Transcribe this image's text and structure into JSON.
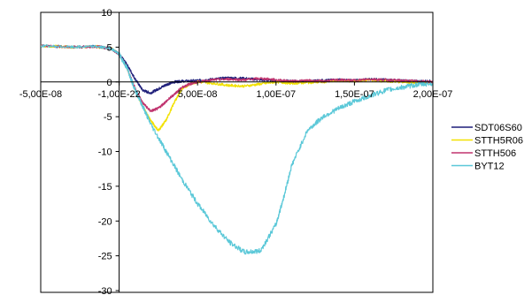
{
  "chart_data": {
    "type": "line",
    "title": "",
    "xlabel": "",
    "ylabel": "",
    "xlim": [
      -5e-08,
      2e-07
    ],
    "ylim": [
      -30,
      10
    ],
    "grid": false,
    "legend_position": "right",
    "x_tick_labels": [
      "-5,00E-08",
      "-1,00E-22",
      "5,00E-08",
      "1,00E-07",
      "1,50E-07",
      "2,00E-07"
    ],
    "y_tick_labels": [
      "10",
      "5",
      "0",
      "-5",
      "-10",
      "-15",
      "-20",
      "-25",
      "-30"
    ],
    "series": [
      {
        "name": "SDT06S60",
        "color": "#1f1f7a",
        "x": [
          -5e-08,
          -3e-08,
          -1.5e-08,
          -5e-09,
          0,
          5e-09,
          1e-08,
          1.5e-08,
          2e-08,
          2.5e-08,
          3e-08,
          3.5e-08,
          4e-08,
          5e-08,
          6e-08,
          7e-08,
          8e-08,
          9e-08,
          1e-07,
          1.1e-07,
          1.2e-07,
          1.3e-07,
          1.4e-07,
          1.5e-07,
          1.6e-07,
          1.7e-07,
          1.8e-07,
          1.9e-07,
          2e-07
        ],
        "y": [
          5.2,
          5.0,
          5.1,
          4.8,
          4.0,
          2.5,
          0.5,
          -1.2,
          -1.6,
          -1.0,
          -0.4,
          0.0,
          0.1,
          0.2,
          0.4,
          0.6,
          0.5,
          0.3,
          0.2,
          0.1,
          0.1,
          0.2,
          0.3,
          0.2,
          0.4,
          0.3,
          0.2,
          0.1,
          0.1
        ]
      },
      {
        "name": "STTH5R06",
        "color": "#f2e100",
        "x": [
          -5e-08,
          -3e-08,
          -1.5e-08,
          -5e-09,
          0,
          5e-09,
          1e-08,
          1.5e-08,
          2e-08,
          2.5e-08,
          3e-08,
          3.5e-08,
          4e-08,
          4.5e-08,
          5e-08,
          6e-08,
          7e-08,
          8e-08,
          9e-08,
          1e-07,
          1.1e-07,
          1.2e-07,
          1.3e-07,
          1.4e-07,
          1.5e-07,
          1.6e-07,
          1.7e-07,
          1.8e-07,
          1.9e-07,
          2e-07
        ],
        "y": [
          5.2,
          5.0,
          5.1,
          4.8,
          4.0,
          2.0,
          -1.0,
          -3.5,
          -5.5,
          -7.0,
          -5.5,
          -3.0,
          -1.0,
          -0.3,
          0.0,
          -0.2,
          -0.5,
          -0.6,
          -0.3,
          0.0,
          -0.2,
          -0.1,
          0.0,
          0.2,
          0.1,
          0.3,
          0.1,
          0.0,
          -0.1,
          0.0
        ]
      },
      {
        "name": "STTH506",
        "color": "#c0336e",
        "x": [
          -5e-08,
          -3e-08,
          -1.5e-08,
          -5e-09,
          0,
          5e-09,
          1e-08,
          1.5e-08,
          2e-08,
          2.5e-08,
          3e-08,
          3.5e-08,
          4e-08,
          4.5e-08,
          5e-08,
          6e-08,
          7e-08,
          8e-08,
          9e-08,
          1e-07,
          1.1e-07,
          1.2e-07,
          1.3e-07,
          1.4e-07,
          1.5e-07,
          1.6e-07,
          1.7e-07,
          1.8e-07,
          1.9e-07,
          2e-07
        ],
        "y": [
          5.2,
          5.0,
          5.1,
          4.8,
          4.0,
          2.0,
          -0.8,
          -3.0,
          -4.2,
          -3.8,
          -2.8,
          -1.8,
          -0.8,
          -0.3,
          0.0,
          0.3,
          0.4,
          0.3,
          0.5,
          0.3,
          0.1,
          0.2,
          0.1,
          0.3,
          0.2,
          0.4,
          0.3,
          0.2,
          0.1,
          0.0
        ]
      },
      {
        "name": "BYT12",
        "color": "#5bc8d8",
        "x": [
          -5e-08,
          -3e-08,
          -1.5e-08,
          -5e-09,
          0,
          5e-09,
          1e-08,
          1.5e-08,
          2e-08,
          3e-08,
          4e-08,
          5e-08,
          6e-08,
          7e-08,
          8e-08,
          9e-08,
          1e-07,
          1.05e-07,
          1.1e-07,
          1.2e-07,
          1.3e-07,
          1.4e-07,
          1.5e-07,
          1.6e-07,
          1.7e-07,
          1.8e-07,
          1.9e-07,
          2e-07
        ],
        "y": [
          5.2,
          5.0,
          5.1,
          4.8,
          4.0,
          2.0,
          -1.0,
          -3.5,
          -6.0,
          -10.0,
          -14.0,
          -17.5,
          -20.5,
          -23.0,
          -24.5,
          -24.3,
          -20.5,
          -16.5,
          -12.0,
          -7.0,
          -5.0,
          -3.8,
          -2.8,
          -2.0,
          -1.2,
          -0.8,
          -0.4,
          -0.2
        ]
      }
    ]
  }
}
